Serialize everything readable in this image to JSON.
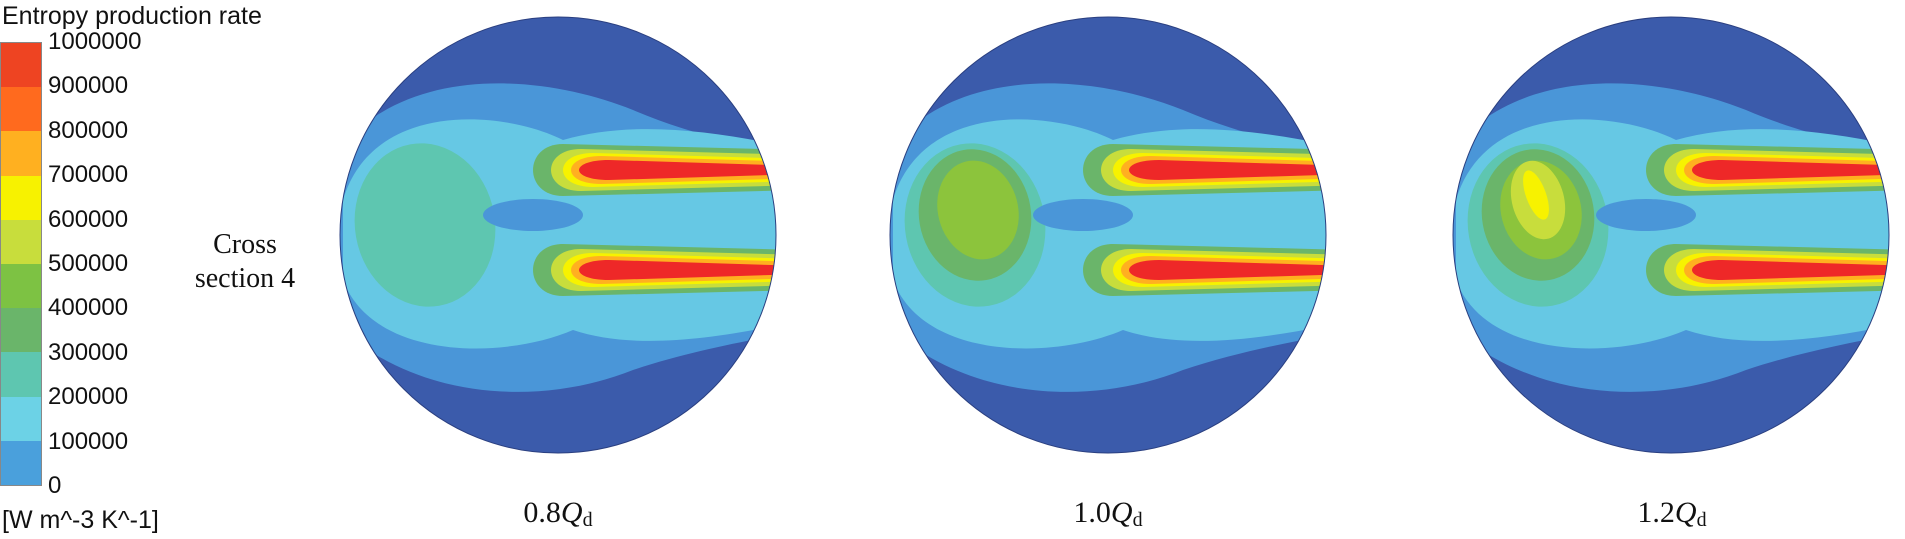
{
  "legend": {
    "title": "Entropy production rate",
    "unit": "[W m^-3 K^-1]",
    "ticks": [
      "1000000",
      "900000",
      "800000",
      "700000",
      "600000",
      "500000",
      "400000",
      "300000",
      "200000",
      "100000",
      "0"
    ],
    "colors": [
      "#ee4422",
      "#ff6a1e",
      "#ffb020",
      "#f7f200",
      "#c8dd3c",
      "#7dc243",
      "#6ab56a",
      "#5ec6b0",
      "#6cd2e6",
      "#4aa0dc",
      "#3b5bab"
    ]
  },
  "section_label": {
    "line1": "Cross",
    "line2": "section 4"
  },
  "plots": [
    {
      "prefix": "0.8",
      "q": "Q",
      "sub": "d",
      "flow_rate_factor": 0.8
    },
    {
      "prefix": "1.0",
      "q": "Q",
      "sub": "d",
      "flow_rate_factor": 1.0
    },
    {
      "prefix": "1.2",
      "q": "Q",
      "sub": "d",
      "flow_rate_factor": 1.2
    }
  ],
  "palette": {
    "outer": "#3b5bab",
    "band1": "#4a96d8",
    "band2": "#66c8e4",
    "band3": "#5ec6b0",
    "band4": "#6ab56a",
    "band5": "#8cc43c",
    "band6": "#c8dd3c",
    "band7": "#f7f200",
    "band8": "#ffb020",
    "core": "#ee2828"
  }
}
